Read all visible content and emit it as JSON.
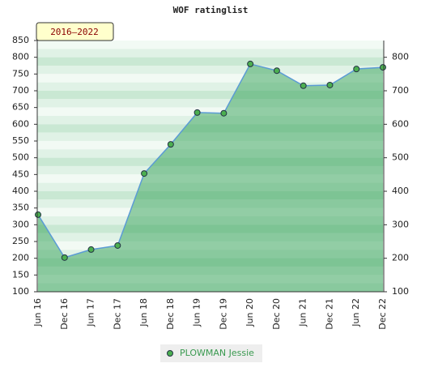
{
  "chart_data": {
    "type": "area",
    "title": "WOF ratinglist",
    "annotation": "2016–2022",
    "categories": [
      "Jun 16",
      "Dec 16",
      "Jun 17",
      "Dec 17",
      "Jun 18",
      "Dec 18",
      "Jun 19",
      "Dec 19",
      "Jun 20",
      "Dec 20",
      "Jun 21",
      "Dec 21",
      "Jun 22",
      "Dec 22"
    ],
    "series": [
      {
        "name": "PLOWMAN Jessie",
        "color": "#5b9bd5",
        "marker_color": "#4caf50",
        "values": [
          330,
          202,
          226,
          238,
          453,
          540,
          635,
          633,
          780,
          760,
          715,
          717,
          765,
          770
        ]
      }
    ],
    "ylim": [
      100,
      850
    ],
    "yticks": [
      100,
      150,
      200,
      250,
      300,
      350,
      400,
      450,
      500,
      550,
      600,
      650,
      700,
      750,
      800,
      850
    ],
    "y2lim": [
      100,
      850
    ],
    "y2ticks": [
      100,
      200,
      300,
      400,
      500,
      600,
      700,
      800
    ]
  }
}
